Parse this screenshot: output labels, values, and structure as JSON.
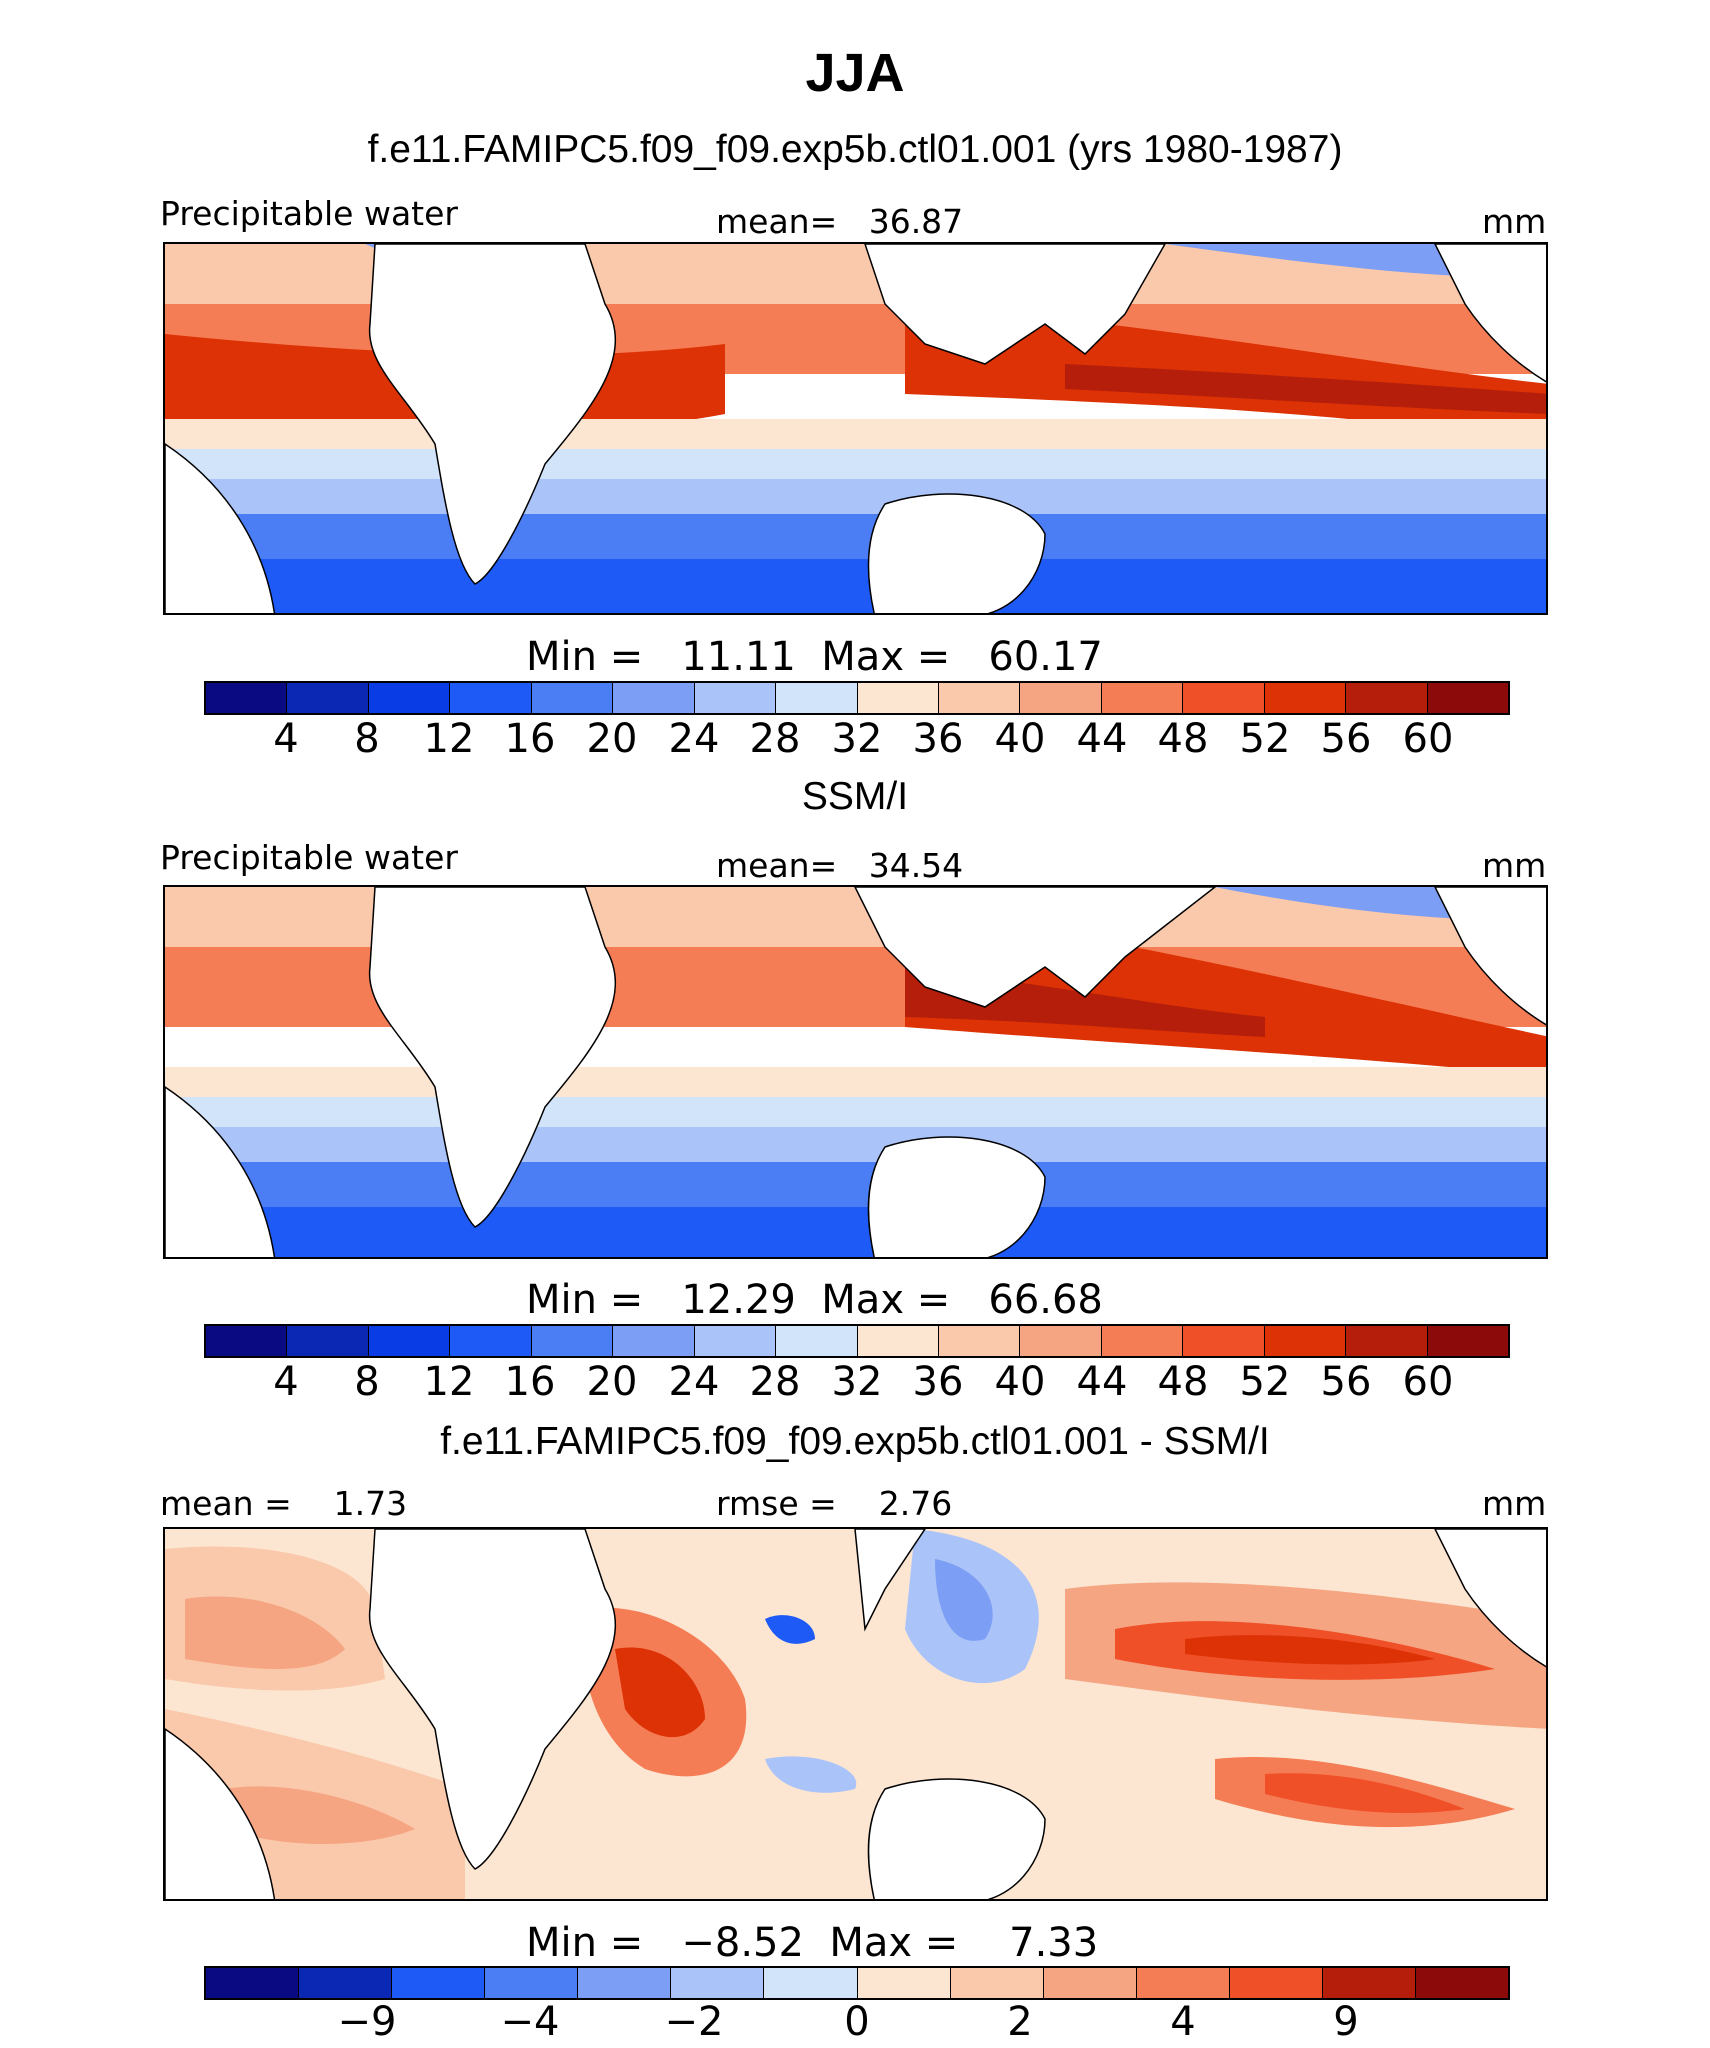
{
  "title": "JJA",
  "panels": [
    {
      "title": "f.e11.FAMIPC5.f09_f09.exp5b.ctl01.001 (yrs 1980-1987)",
      "left_label": "Precipitable water",
      "center_label": "mean=   36.87",
      "right_label": "mm",
      "minmax": "Min =   11.11  Max =   60.17",
      "cbar_ticks": [
        "4",
        "8",
        "12",
        "16",
        "20",
        "24",
        "28",
        "32",
        "36",
        "40",
        "44",
        "48",
        "52",
        "56",
        "60"
      ]
    },
    {
      "title": "SSM/I",
      "left_label": "Precipitable water",
      "center_label": "mean=   34.54",
      "right_label": "mm",
      "minmax": "Min =   12.29  Max =   66.68",
      "cbar_ticks": [
        "4",
        "8",
        "12",
        "16",
        "20",
        "24",
        "28",
        "32",
        "36",
        "40",
        "44",
        "48",
        "52",
        "56",
        "60"
      ]
    },
    {
      "title": "f.e11.FAMIPC5.f09_f09.exp5b.ctl01.001 - SSM/I",
      "left_label": "mean =    1.73",
      "center_label": "rmse =    2.76",
      "right_label": "mm",
      "minmax": "Min =   −8.52  Max =    7.33",
      "cbar_ticks": [
        "−9",
        "−4",
        "−2",
        "0",
        "2",
        "4",
        "9"
      ]
    }
  ],
  "colors": {
    "palette16": [
      "#0a0a82",
      "#0a28b4",
      "#0a3ce6",
      "#1e5af5",
      "#4b7df5",
      "#7d9ef5",
      "#aac3f8",
      "#d2e4fa",
      "#fce6d2",
      "#fac8aa",
      "#f5a582",
      "#f57d55",
      "#f05028",
      "#dc3205",
      "#b41e0a",
      "#8c0a0a"
    ],
    "palette14": [
      "#0a0a82",
      "#0a28b4",
      "#1e5af5",
      "#4b7df5",
      "#7d9ef5",
      "#aac3f8",
      "#d2e4fa",
      "#fce6d2",
      "#fac8aa",
      "#f5a582",
      "#f57d55",
      "#f05028",
      "#b41e0a",
      "#8c0a0a"
    ]
  },
  "chart_data": [
    {
      "type": "heatmap",
      "title": "f.e11.FAMIPC5.f09_f09.exp5b.ctl01.001 (yrs 1980-1987)",
      "variable": "Precipitable water",
      "units": "mm",
      "mean": 36.87,
      "min": 11.11,
      "max": 60.17,
      "levels": [
        4,
        8,
        12,
        16,
        20,
        24,
        28,
        32,
        36,
        40,
        44,
        48,
        52,
        56,
        60
      ]
    },
    {
      "type": "heatmap",
      "title": "SSM/I",
      "variable": "Precipitable water",
      "units": "mm",
      "mean": 34.54,
      "min": 12.29,
      "max": 66.68,
      "levels": [
        4,
        8,
        12,
        16,
        20,
        24,
        28,
        32,
        36,
        40,
        44,
        48,
        52,
        56,
        60
      ]
    },
    {
      "type": "heatmap",
      "title": "f.e11.FAMIPC5.f09_f09.exp5b.ctl01.001 - SSM/I",
      "units": "mm",
      "mean": 1.73,
      "rmse": 2.76,
      "min": -8.52,
      "max": 7.33,
      "levels": [
        -9,
        -4,
        -2,
        0,
        2,
        4,
        9
      ]
    }
  ]
}
